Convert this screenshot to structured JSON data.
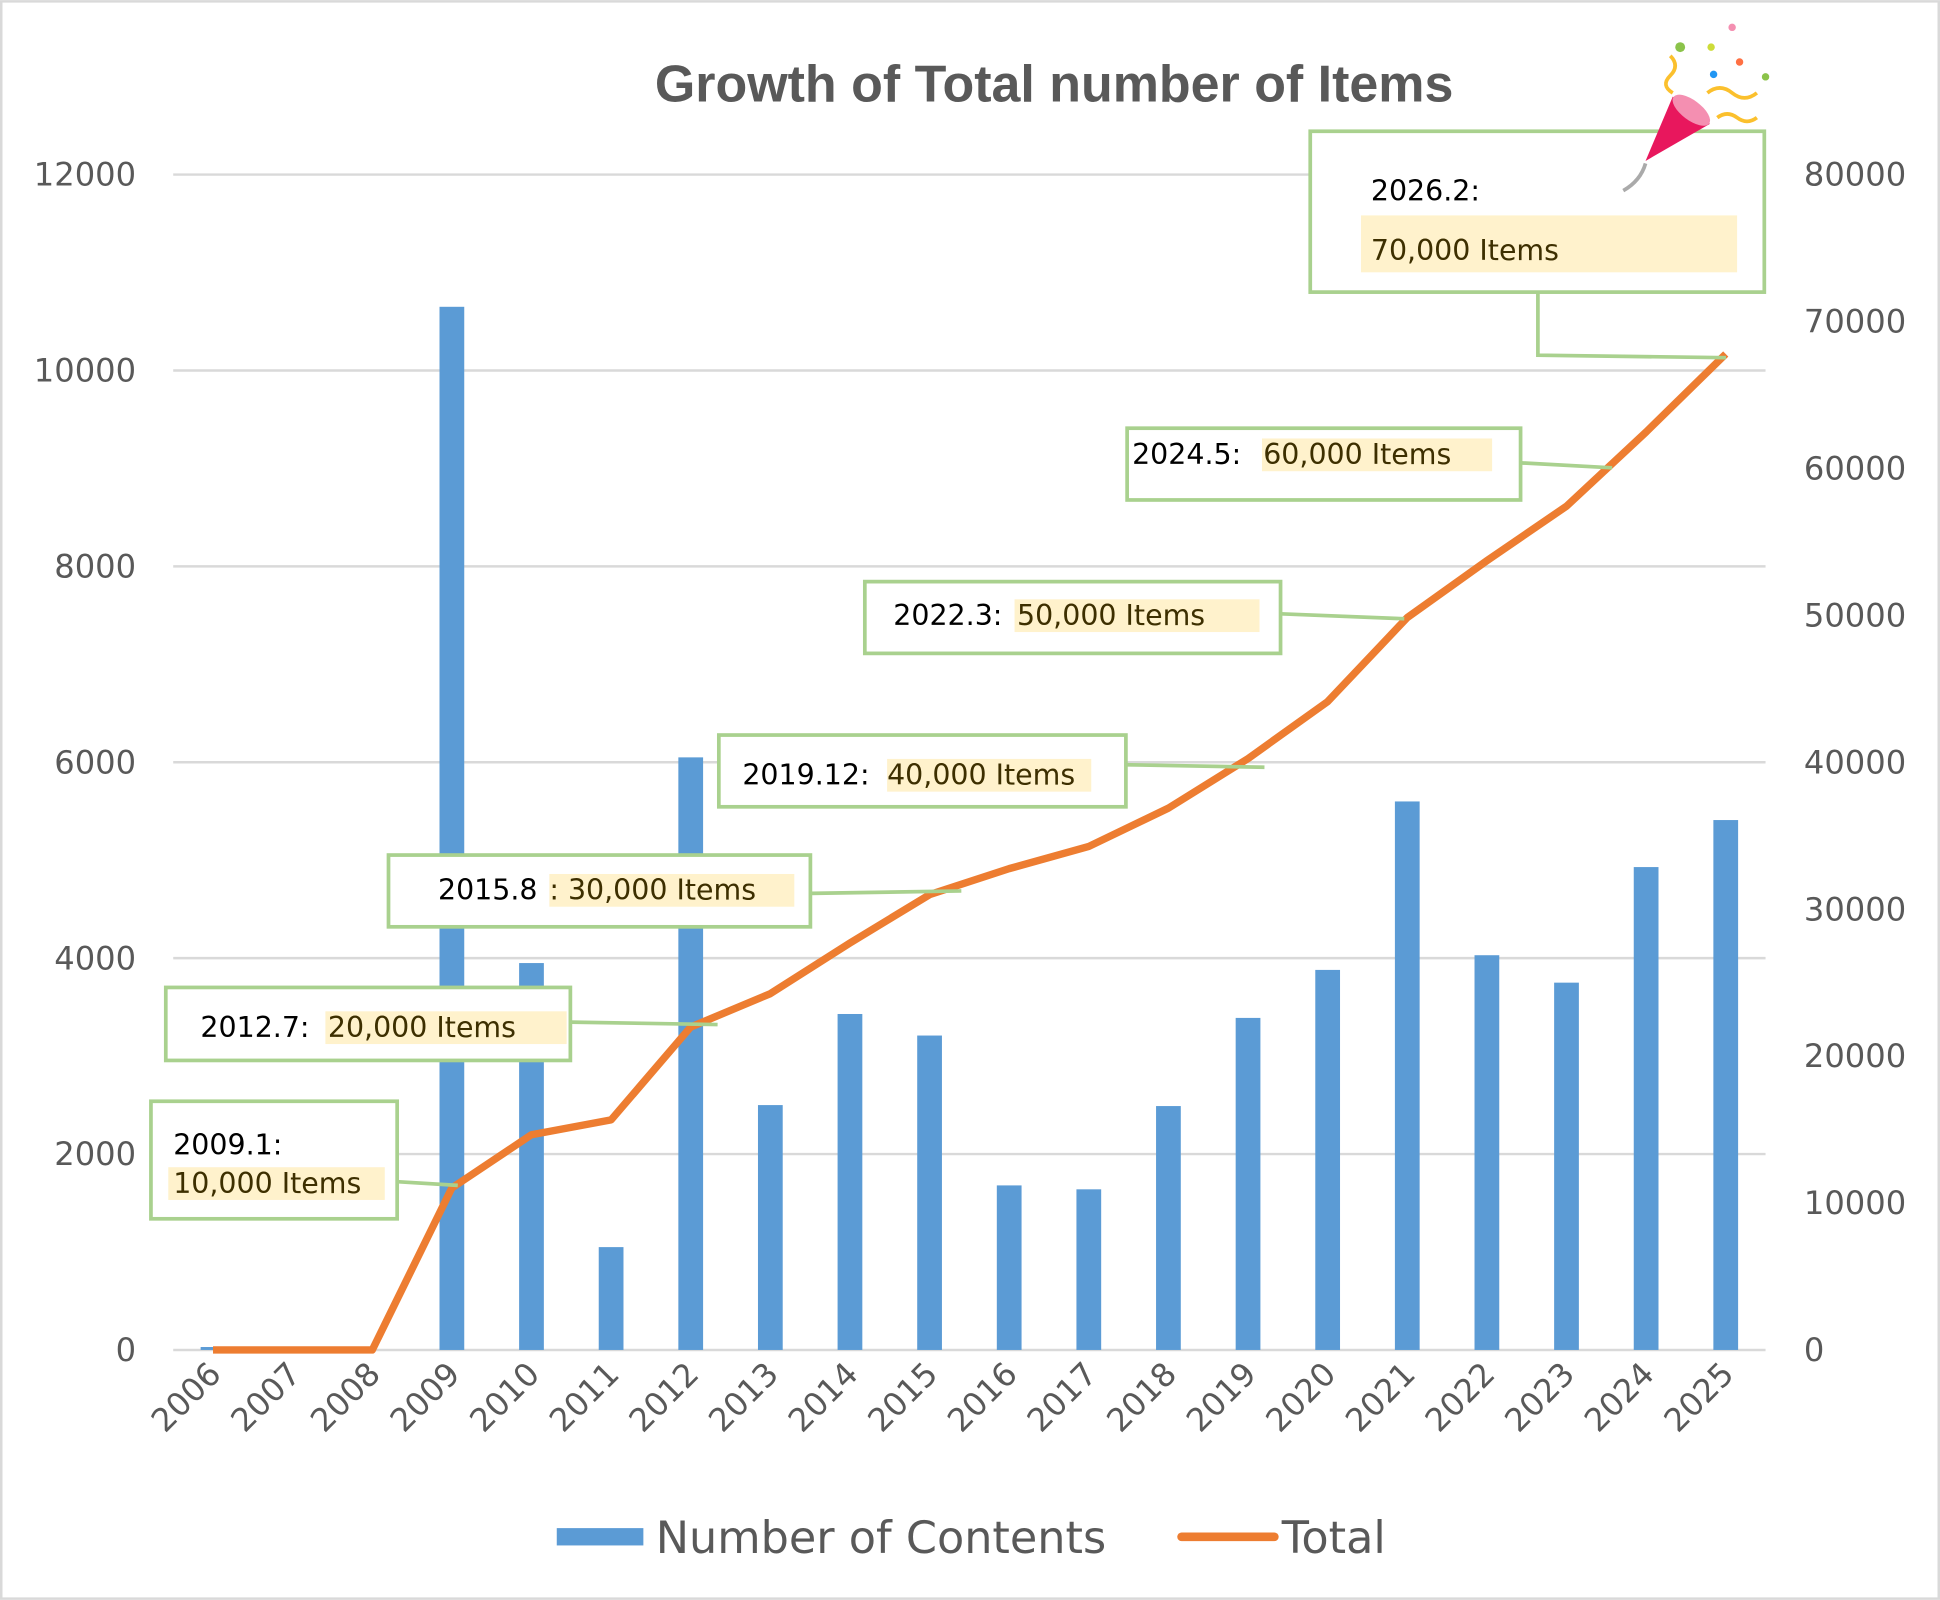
{
  "chart_data": {
    "type": "bar+line",
    "title": "Growth of Total number of Items",
    "categories": [
      "2006",
      "2007",
      "2008",
      "2009",
      "2010",
      "2011",
      "2012",
      "2013",
      "2014",
      "2015",
      "2016",
      "2017",
      "2018",
      "2019",
      "2020",
      "2021",
      "2022",
      "2023",
      "2024",
      "2025"
    ],
    "series": [
      {
        "name": "Number of Contents",
        "type": "bar",
        "axis": "left",
        "color": "#5b9bd5",
        "values": [
          30,
          0,
          0,
          10650,
          3950,
          1050,
          6050,
          2500,
          3430,
          3210,
          1680,
          1640,
          2490,
          3390,
          3880,
          5600,
          4030,
          3750,
          4930,
          5410
        ]
      },
      {
        "name": "Total",
        "type": "line",
        "axis": "right",
        "color": "#ed7d31",
        "values": [
          0,
          0,
          0,
          11030,
          14650,
          15660,
          21980,
          24250,
          27700,
          30990,
          32760,
          34270,
          36880,
          40250,
          44130,
          49850,
          53720,
          57430,
          62480,
          67790
        ]
      }
    ],
    "left_axis": {
      "ylim": [
        0,
        12000
      ],
      "ticks": [
        "0",
        "2000",
        "4000",
        "6000",
        "8000",
        "10000",
        "12000"
      ]
    },
    "right_axis": {
      "ylim": [
        0,
        80000
      ],
      "ticks": [
        "0",
        "10000",
        "20000",
        "30000",
        "40000",
        "50000",
        "60000",
        "70000",
        "80000"
      ]
    },
    "grid": true,
    "legend_position": "bottom",
    "annotations": [
      {
        "date": "2009.1:",
        "value": "10,000 Items"
      },
      {
        "date": "2012.7:",
        "value": "20,000 Items"
      },
      {
        "date": "2015.8",
        "value": ": 30,000 Items"
      },
      {
        "date": "2019.12:",
        "value": "40,000  Items"
      },
      {
        "date": "2022.3:",
        "value": "50,000 Items"
      },
      {
        "date": "2024.5:",
        "value": "60,000 Items"
      },
      {
        "date": "2026.2:",
        "value": "70,000  Items"
      }
    ],
    "colors": {
      "annotation_border": "#a9d18e",
      "highlight": "#fff2cc",
      "grid": "#d9d9d9"
    }
  }
}
